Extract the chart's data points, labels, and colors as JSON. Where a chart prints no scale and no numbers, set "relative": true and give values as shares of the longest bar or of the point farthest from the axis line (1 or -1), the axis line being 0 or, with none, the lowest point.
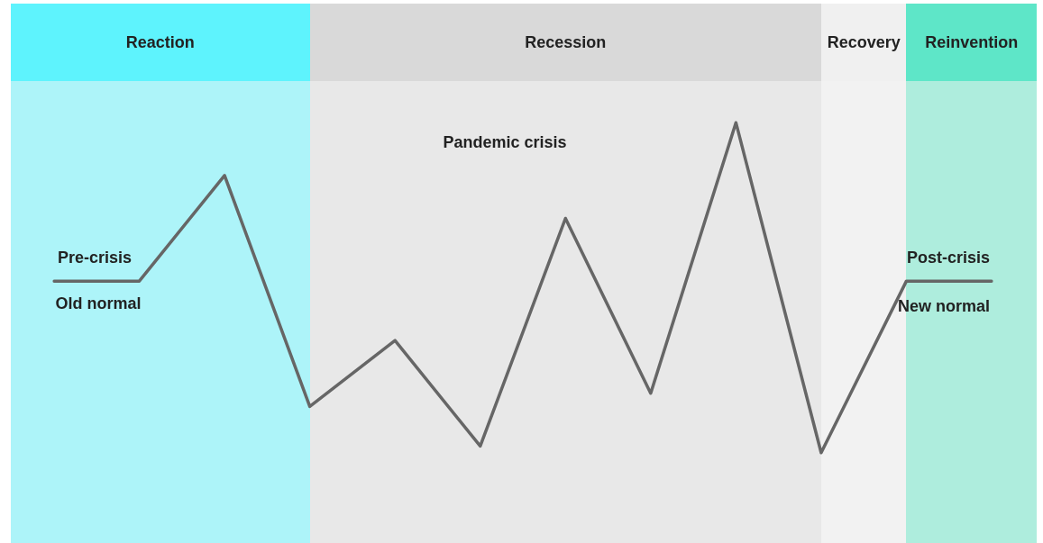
{
  "chart_data": {
    "type": "line",
    "relative": true,
    "marker": "none",
    "line_style": "solid",
    "categories": [
      null,
      null,
      null,
      null,
      null,
      null,
      null,
      null,
      null,
      null,
      null,
      null
    ],
    "series": [
      {
        "color": "#666666",
        "values": [
          0.52,
          0.52,
          0.84,
          0.14,
          0.34,
          0.02,
          0.71,
          0.18,
          1,
          0,
          0.52,
          0.52
        ]
      }
    ],
    "annotations": [
      "Reaction",
      "Recession",
      "Recovery",
      "Reinvention",
      "Pre-crisis",
      "Old normal",
      "Pandemic crisis",
      "Post-crisis",
      "New normal"
    ]
  }
}
